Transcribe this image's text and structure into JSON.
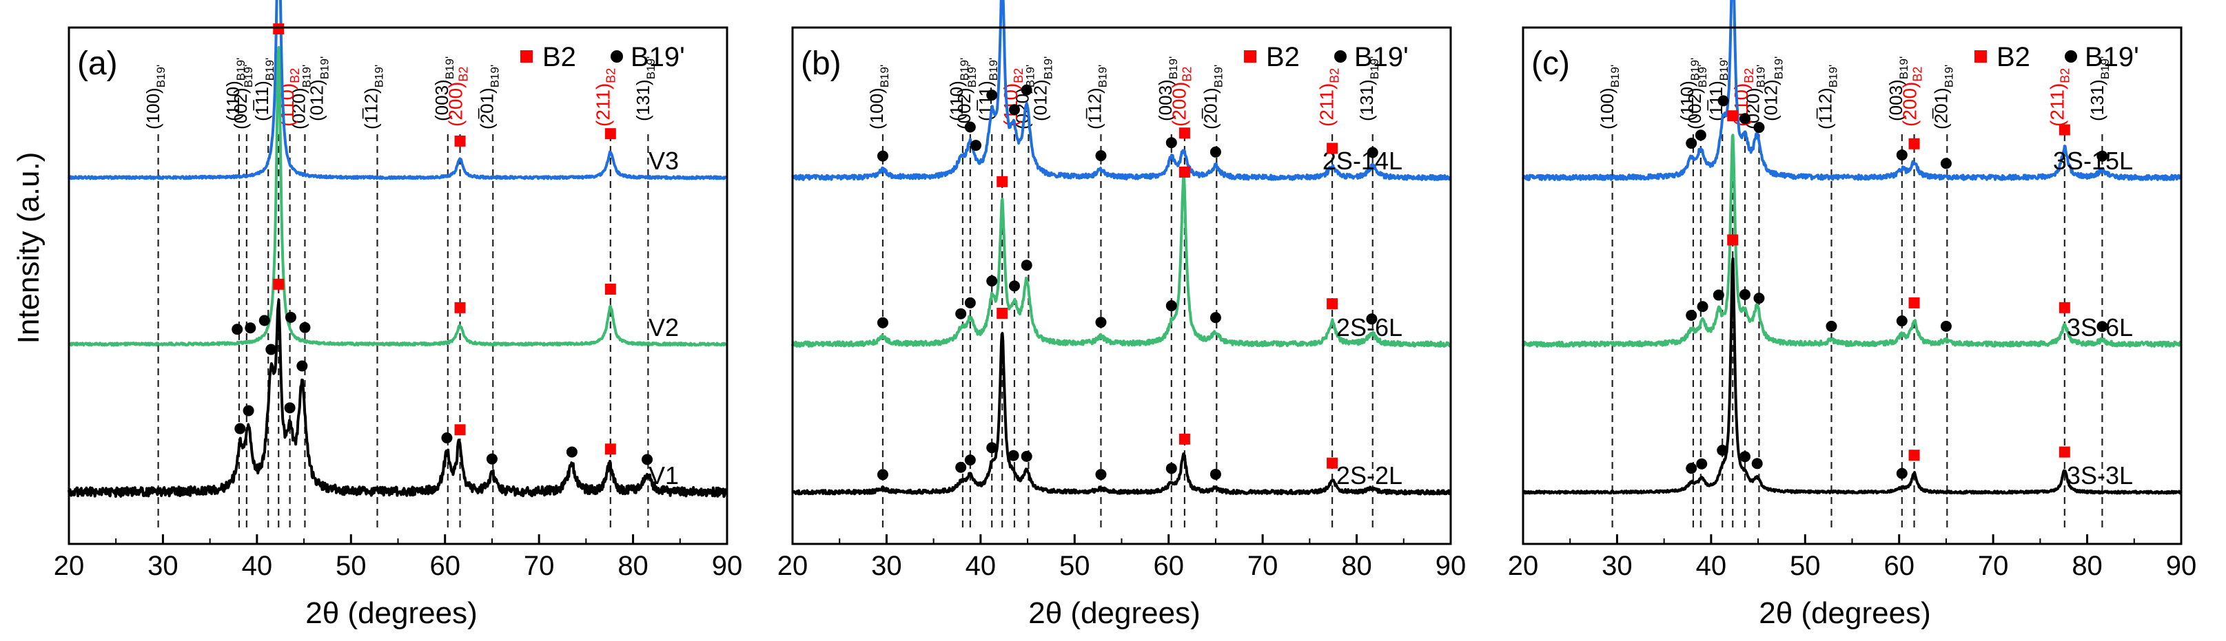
{
  "figure": {
    "ylabel": "Intensity (a.u.)",
    "xlabel": "2θ (degrees)",
    "xticks": [
      20,
      30,
      40,
      50,
      60,
      70,
      80,
      90
    ],
    "xlim": [
      20,
      90
    ],
    "colors": {
      "top": "#1f6fe0",
      "mid": "#3dbb72",
      "bot": "#000000",
      "b2": "#ff0000",
      "b19": "#000000"
    }
  },
  "chart_data": [
    {
      "type": "line",
      "panel_label": "(a)",
      "legend": {
        "b2": "B2",
        "b19": "B19'"
      },
      "series": [
        {
          "name": "V3",
          "baseline": 0.2,
          "noise": 0.003,
          "peaks": [
            [
              42.3,
              0.72,
              0.28
            ],
            [
              61.6,
              0.05,
              0.4
            ],
            [
              77.6,
              0.07,
              0.4
            ]
          ]
        },
        {
          "name": "V2",
          "baseline": 0.2,
          "noise": 0.003,
          "peaks": [
            [
              42.3,
              0.8,
              0.28
            ],
            [
              61.6,
              0.05,
              0.4
            ],
            [
              77.6,
              0.1,
              0.4
            ]
          ]
        },
        {
          "name": "V1",
          "baseline": 0.2,
          "noise": 0.012,
          "peaks": [
            [
              38.2,
              0.1,
              0.4
            ],
            [
              39.1,
              0.15,
              0.4
            ],
            [
              41.5,
              0.28,
              0.45
            ],
            [
              42.3,
              0.42,
              0.3
            ],
            [
              43.5,
              0.12,
              0.4
            ],
            [
              44.8,
              0.28,
              0.45
            ],
            [
              60.2,
              0.1,
              0.4
            ],
            [
              61.5,
              0.12,
              0.35
            ],
            [
              65.0,
              0.05,
              0.4
            ],
            [
              73.5,
              0.07,
              0.5
            ],
            [
              77.5,
              0.07,
              0.4
            ],
            [
              81.5,
              0.05,
              0.5
            ]
          ]
        }
      ],
      "b2_markers": [
        {
          "series": "V3",
          "x": [
            42.3,
            61.6,
            77.6
          ]
        },
        {
          "series": "V2",
          "x": [
            42.3,
            61.6,
            77.6
          ]
        },
        {
          "series": "V1",
          "x": [
            42.3,
            61.6,
            77.6
          ]
        }
      ],
      "b19_markers": [
        {
          "series": "V2",
          "x": [
            37.9,
            39.3,
            40.8,
            43.6,
            45.1
          ]
        },
        {
          "series": "V1",
          "x": [
            38.2,
            39.1,
            41.5,
            43.5,
            44.8,
            60.2,
            65.0,
            73.5,
            81.5
          ]
        }
      ],
      "reference_lines": [
        29.5,
        38.1,
        38.9,
        41.2,
        42.3,
        43.5,
        45.1,
        52.8,
        60.3,
        61.6,
        65.1,
        77.6,
        81.6
      ]
    },
    {
      "type": "line",
      "panel_label": "(b)",
      "legend": {
        "b2": "B2",
        "b19": "B19'"
      },
      "series": [
        {
          "name": "2S-14L",
          "baseline": 0.2,
          "noise": 0.006,
          "peaks": [
            [
              29.6,
              0.02,
              0.5
            ],
            [
              37.9,
              0.04,
              0.5
            ],
            [
              38.9,
              0.08,
              0.45
            ],
            [
              41.2,
              0.14,
              0.45
            ],
            [
              42.3,
              0.5,
              0.3
            ],
            [
              43.5,
              0.1,
              0.45
            ],
            [
              44.9,
              0.18,
              0.45
            ],
            [
              52.8,
              0.02,
              0.5
            ],
            [
              60.3,
              0.05,
              0.45
            ],
            [
              61.6,
              0.07,
              0.4
            ],
            [
              65.0,
              0.03,
              0.5
            ],
            [
              77.4,
              0.03,
              0.5
            ],
            [
              81.7,
              0.03,
              0.5
            ]
          ]
        },
        {
          "name": "2S-6L",
          "baseline": 0.2,
          "noise": 0.006,
          "peaks": [
            [
              29.6,
              0.02,
              0.5
            ],
            [
              37.9,
              0.03,
              0.5
            ],
            [
              38.9,
              0.06,
              0.45
            ],
            [
              41.2,
              0.1,
              0.45
            ],
            [
              42.3,
              0.36,
              0.3
            ],
            [
              43.6,
              0.08,
              0.45
            ],
            [
              44.9,
              0.16,
              0.45
            ],
            [
              52.8,
              0.02,
              0.5
            ],
            [
              60.3,
              0.04,
              0.45
            ],
            [
              61.6,
              0.45,
              0.32
            ],
            [
              65.0,
              0.03,
              0.5
            ],
            [
              77.4,
              0.06,
              0.45
            ],
            [
              81.6,
              0.03,
              0.5
            ]
          ]
        },
        {
          "name": "2S-2L",
          "baseline": 0.2,
          "noise": 0.005,
          "peaks": [
            [
              29.6,
              0.01,
              0.5
            ],
            [
              37.9,
              0.02,
              0.5
            ],
            [
              38.9,
              0.04,
              0.45
            ],
            [
              41.2,
              0.05,
              0.45
            ],
            [
              42.3,
              0.42,
              0.3
            ],
            [
              43.5,
              0.03,
              0.45
            ],
            [
              44.9,
              0.05,
              0.45
            ],
            [
              52.8,
              0.01,
              0.5
            ],
            [
              60.3,
              0.02,
              0.45
            ],
            [
              61.6,
              0.1,
              0.35
            ],
            [
              65.0,
              0.01,
              0.5
            ],
            [
              77.4,
              0.03,
              0.45
            ],
            [
              81.6,
              0.01,
              0.5
            ]
          ]
        }
      ],
      "b2_markers": [
        {
          "series": "2S-14L",
          "x": [
            42.3,
            61.7,
            77.4
          ]
        },
        {
          "series": "2S-6L",
          "x": [
            42.3,
            61.7,
            77.4
          ]
        },
        {
          "series": "2S-2L",
          "x": [
            42.3,
            61.7,
            77.4
          ]
        }
      ],
      "b19_markers": [
        {
          "series": "2S-14L",
          "x": [
            29.6,
            38.9,
            39.5,
            41.2,
            43.6,
            44.9,
            52.8,
            60.3,
            65.0,
            81.7
          ]
        },
        {
          "series": "2S-6L",
          "x": [
            29.6,
            37.9,
            38.9,
            41.2,
            43.6,
            44.9,
            52.8,
            60.3,
            65.0,
            81.6
          ]
        },
        {
          "series": "2S-2L",
          "x": [
            29.6,
            37.9,
            38.9,
            41.2,
            43.5,
            44.9,
            52.8,
            60.3,
            65.0
          ]
        }
      ],
      "reference_lines": [
        29.6,
        38.1,
        38.9,
        41.2,
        42.3,
        43.6,
        45.1,
        52.8,
        60.3,
        61.7,
        65.1,
        77.4,
        81.7
      ]
    },
    {
      "type": "line",
      "panel_label": "(c)",
      "legend": {
        "b2": "B2",
        "b19": "B19'"
      },
      "series": [
        {
          "name": "3S-15L",
          "baseline": 0.2,
          "noise": 0.006,
          "peaks": [
            [
              37.9,
              0.04,
              0.5
            ],
            [
              38.9,
              0.06,
              0.45
            ],
            [
              41.3,
              0.12,
              0.45
            ],
            [
              42.3,
              0.58,
              0.28
            ],
            [
              43.6,
              0.08,
              0.45
            ],
            [
              44.9,
              0.1,
              0.45
            ],
            [
              60.3,
              0.02,
              0.5
            ],
            [
              61.6,
              0.04,
              0.4
            ],
            [
              77.6,
              0.08,
              0.4
            ],
            [
              81.6,
              0.02,
              0.5
            ]
          ]
        },
        {
          "name": "3S-6L",
          "baseline": 0.2,
          "noise": 0.006,
          "peaks": [
            [
              37.9,
              0.03,
              0.5
            ],
            [
              39.1,
              0.05,
              0.45
            ],
            [
              40.8,
              0.07,
              0.45
            ],
            [
              42.3,
              0.55,
              0.28
            ],
            [
              43.6,
              0.06,
              0.45
            ],
            [
              44.9,
              0.09,
              0.45
            ],
            [
              52.8,
              0.01,
              0.5
            ],
            [
              60.3,
              0.02,
              0.5
            ],
            [
              61.6,
              0.06,
              0.4
            ],
            [
              65.0,
              0.01,
              0.5
            ],
            [
              77.6,
              0.05,
              0.4
            ],
            [
              81.6,
              0.01,
              0.5
            ]
          ]
        },
        {
          "name": "3S-3L",
          "baseline": 0.2,
          "noise": 0.003,
          "peaks": [
            [
              37.9,
              0.02,
              0.5
            ],
            [
              39.0,
              0.03,
              0.45
            ],
            [
              41.2,
              0.04,
              0.45
            ],
            [
              42.3,
              0.62,
              0.26
            ],
            [
              43.6,
              0.03,
              0.45
            ],
            [
              44.9,
              0.03,
              0.45
            ],
            [
              60.3,
              0.01,
              0.5
            ],
            [
              61.6,
              0.05,
              0.35
            ],
            [
              77.6,
              0.06,
              0.35
            ]
          ]
        }
      ],
      "b2_markers": [
        {
          "series": "3S-15L",
          "x": [
            42.3,
            61.6,
            77.6
          ]
        },
        {
          "series": "3S-6L",
          "x": [
            42.3,
            61.6,
            77.6
          ]
        },
        {
          "series": "3S-3L",
          "x": [
            42.3,
            61.6,
            77.6
          ]
        }
      ],
      "b19_markers": [
        {
          "series": "3S-15L",
          "x": [
            37.9,
            38.9,
            41.3,
            43.6,
            45.1,
            60.3,
            65.0,
            81.6
          ]
        },
        {
          "series": "3S-6L",
          "x": [
            37.9,
            39.1,
            40.8,
            43.6,
            45.1,
            52.8,
            60.3,
            65.0,
            81.6
          ]
        },
        {
          "series": "3S-3L",
          "x": [
            37.9,
            39.0,
            41.2,
            43.6,
            44.9,
            60.3
          ]
        }
      ],
      "reference_lines": [
        29.5,
        38.1,
        38.9,
        41.2,
        42.3,
        43.6,
        45.1,
        52.8,
        60.3,
        61.6,
        65.1,
        77.6,
        81.6
      ]
    }
  ],
  "annotations": {
    "b19": [
      "(100)",
      "(110)",
      "(002)",
      "(1̅11)",
      "(020)",
      "(012)",
      "(1̅12)",
      "(003)",
      "(2̅01)",
      "(131)"
    ],
    "b2": [
      "(110)",
      "(200)",
      "(211)"
    ],
    "b19_sub": "B19'",
    "b2_sub": "B2",
    "b19_x": [
      29.6,
      38.1,
      38.9,
      41.2,
      45.1,
      47.0,
      52.8,
      60.3,
      65.1,
      81.7
    ],
    "b2_x": [
      43.9,
      61.8,
      77.5
    ]
  }
}
